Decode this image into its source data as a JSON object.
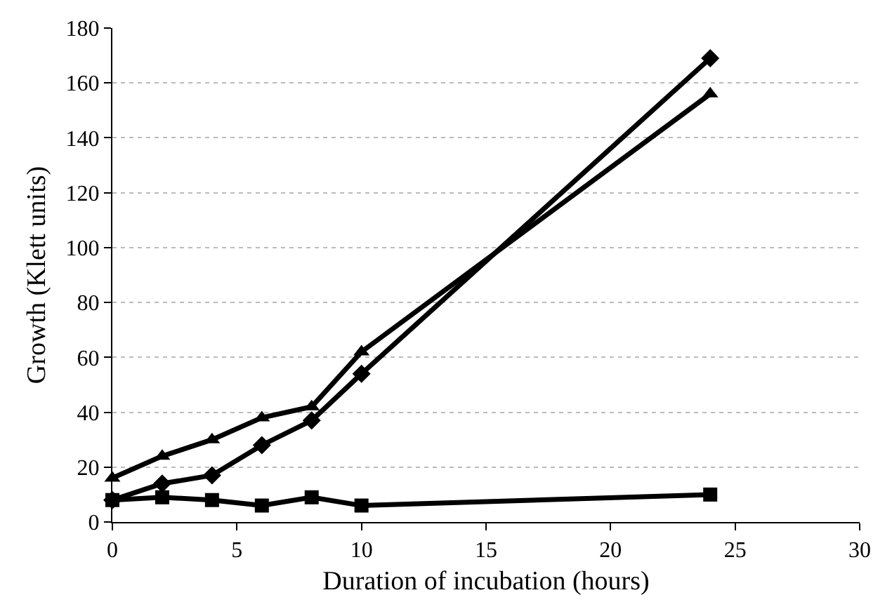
{
  "chart_data": {
    "type": "line",
    "xlabel": "Duration of incubation (hours)",
    "ylabel": "Growth (Klett units)",
    "x": [
      0,
      2,
      4,
      6,
      8,
      10,
      24
    ],
    "series": [
      {
        "color": "#000000",
        "marker": "diamond",
        "values": [
          8,
          14,
          17,
          28,
          37,
          54,
          169
        ]
      },
      {
        "color": "#000000",
        "marker": "square",
        "values": [
          8,
          9,
          8,
          6,
          9,
          6,
          10
        ]
      },
      {
        "color": "#000000",
        "marker": "triangle",
        "values": [
          16,
          24,
          30,
          38,
          42,
          62,
          156
        ]
      }
    ],
    "xlim": [
      0,
      30
    ],
    "xticks": [
      0,
      5,
      10,
      15,
      20,
      25,
      30
    ],
    "ylim": [
      0,
      180
    ],
    "yticks": [
      0,
      20,
      40,
      60,
      80,
      100,
      120,
      140,
      160,
      180
    ],
    "grid": "y",
    "line_style": "solid"
  }
}
